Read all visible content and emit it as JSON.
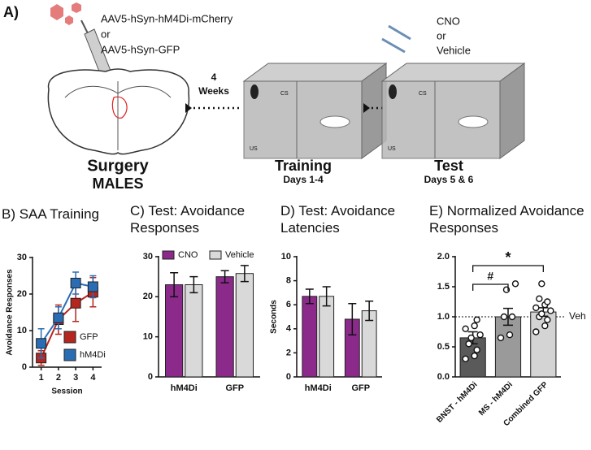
{
  "panel_a": {
    "label": "A)",
    "virus_1": "AAV5-hSyn-hM4Di-mCherry",
    "virus_or": "or",
    "virus_2": "AAV5-hSyn-GFP",
    "delay_number": "4",
    "delay_unit": "Weeks",
    "cs": "CS",
    "us": "US",
    "surgery": "Surgery",
    "sex": "MALES",
    "training": "Training",
    "training_days": "Days 1-4",
    "drug_1": "CNO",
    "drug_or": "or",
    "drug_2": "Vehicle",
    "test": "Test",
    "test_days": "Days 5 & 6"
  },
  "chart_data": [
    {
      "type": "line",
      "title": "B) SAA Training",
      "ylabel": "Avoidance Responses",
      "xlabel": "Session",
      "x": [
        1,
        2,
        3,
        4
      ],
      "xlim": [
        0.5,
        4.5
      ],
      "xticks": [
        1,
        2,
        3,
        4
      ],
      "ylim": [
        0,
        30
      ],
      "yticks": [
        0,
        10,
        20,
        30
      ],
      "legend": "lower right",
      "series": [
        {
          "name": "GFP",
          "color": "#b5261e",
          "values": [
            2.5,
            13,
            17.5,
            20.5
          ],
          "errors": [
            2,
            4,
            5,
            4
          ]
        },
        {
          "name": "hM4Di",
          "color": "#2a6db5",
          "values": [
            6.5,
            13.5,
            23,
            22
          ],
          "errors": [
            4,
            3,
            3,
            3
          ]
        }
      ]
    },
    {
      "type": "bar",
      "title": "C) Test: Avoidance Responses",
      "categories": [
        "hM4Di",
        "GFP"
      ],
      "ylim": [
        0,
        30
      ],
      "yticks": [
        0,
        10,
        20,
        30
      ],
      "legend": "top",
      "series": [
        {
          "name": "CNO",
          "color": "#8b2a8b",
          "values": [
            23,
            25
          ],
          "errors": [
            3,
            1.5
          ]
        },
        {
          "name": "Vehicle",
          "color": "#d9d9d9",
          "values": [
            23,
            25.8
          ],
          "errors": [
            2,
            2
          ]
        }
      ]
    },
    {
      "type": "bar",
      "title": "D) Test: Avoidance Latencies",
      "ylabel": "Seconds",
      "categories": [
        "hM4Di",
        "GFP"
      ],
      "ylim": [
        0,
        10
      ],
      "yticks": [
        0,
        2,
        4,
        6,
        8,
        10
      ],
      "series": [
        {
          "color": "#8b2a8b",
          "values": [
            6.7,
            4.8
          ],
          "errors": [
            0.6,
            1.3
          ]
        },
        {
          "color": "#d9d9d9",
          "values": [
            6.7,
            5.5
          ],
          "errors": [
            0.8,
            0.8
          ]
        }
      ]
    },
    {
      "type": "bar",
      "title": "E) Normalized Avoidance Responses",
      "categories": [
        "BNST - hM4Di",
        "MS - hM4Di",
        "Combined GFP"
      ],
      "ylim": [
        0,
        2
      ],
      "yticks": [
        {
          "value": 0,
          "label": "0.0"
        },
        {
          "value": 0.5,
          "label": "0.5"
        },
        {
          "value": 1,
          "label": "1.0"
        },
        {
          "value": 1.5,
          "label": "1.5"
        },
        {
          "value": 2,
          "label": "2.0"
        }
      ],
      "values": [
        0.65,
        1.0,
        1.08
      ],
      "errors": [
        0.1,
        0.14,
        0.07
      ],
      "colors": [
        "#5a5a5a",
        "#9a9a9a",
        "#d4d4d4"
      ],
      "points": [
        [
          0.3,
          0.35,
          0.45,
          0.55,
          0.65,
          0.7,
          0.8,
          0.85,
          0.95
        ],
        [
          0.65,
          0.7,
          1.0,
          1.0,
          1.45,
          1.55
        ],
        [
          0.75,
          0.85,
          0.95,
          1.0,
          1.05,
          1.1,
          1.15,
          1.2,
          1.25,
          1.3,
          1.55
        ]
      ],
      "reference_line": {
        "value": 1,
        "label": "Veh"
      },
      "annotations": [
        {
          "text": "#"
        },
        {
          "text": "*"
        }
      ]
    }
  ]
}
